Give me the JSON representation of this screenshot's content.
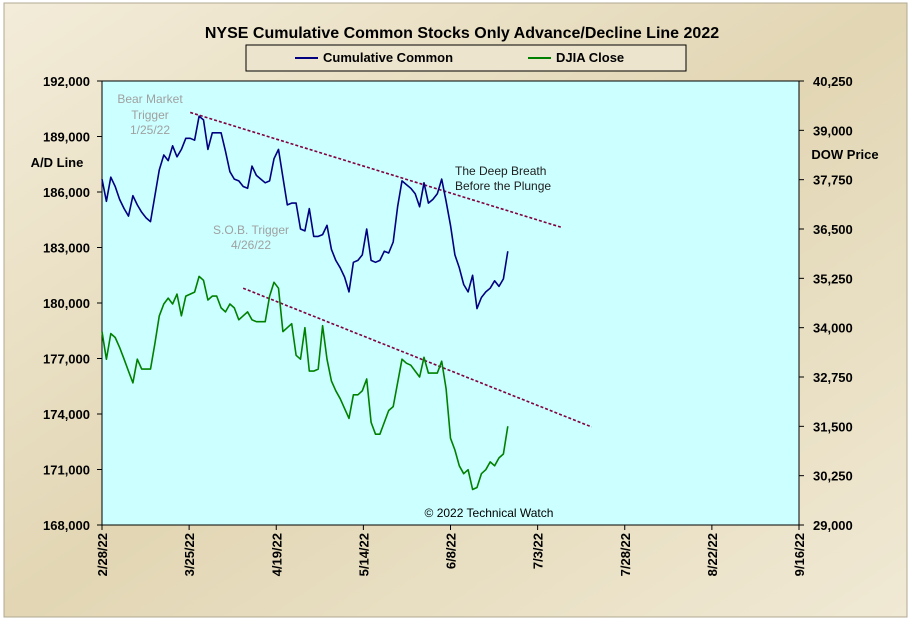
{
  "chart_data": {
    "type": "line",
    "title": "NYSE Cumulative  Common Stocks Only Advance/Decline  Line 2022",
    "ylabel_left": "A/D Line",
    "ylabel_right": "DOW  Price",
    "credit": "© 2022 Technical Watch",
    "x_ticks": [
      "2/28/22",
      "3/25/22",
      "4/19/22",
      "5/14/22",
      "6/8/22",
      "7/3/22",
      "7/28/22",
      "8/22/22",
      "9/16/22"
    ],
    "y_left_ticks": [
      "192,000",
      "189,000",
      "186,000",
      "183,000",
      "180,000",
      "177,000",
      "174,000",
      "171,000",
      "168,000"
    ],
    "y_right_ticks": [
      "40,250",
      "39,000",
      "37,750",
      "36,500",
      "35,250",
      "34,000",
      "32,750",
      "31,500",
      "30,250",
      "29,000"
    ],
    "y_left_range": [
      168000,
      192000
    ],
    "y_right_range": [
      29000,
      40250
    ],
    "colors": {
      "background_outer": "#e6dcc0",
      "plot_bg": "#ccffff",
      "ad_line": "#000080",
      "djia": "#008000",
      "trend": "#800040"
    },
    "series": [
      {
        "name": "Cumulative Common",
        "axis": "left",
        "points": [
          [
            0,
            186700
          ],
          [
            1,
            185500
          ],
          [
            2,
            186800
          ],
          [
            3,
            186300
          ],
          [
            4,
            185600
          ],
          [
            5,
            185100
          ],
          [
            6,
            184700
          ],
          [
            7,
            185800
          ],
          [
            8,
            185300
          ],
          [
            9,
            184900
          ],
          [
            10,
            184600
          ],
          [
            11,
            184400
          ],
          [
            12,
            185800
          ],
          [
            13,
            187200
          ],
          [
            14,
            188000
          ],
          [
            15,
            187700
          ],
          [
            16,
            188500
          ],
          [
            17,
            187900
          ],
          [
            18,
            188300
          ],
          [
            19,
            188900
          ],
          [
            20,
            188900
          ],
          [
            21,
            188800
          ],
          [
            22,
            190100
          ],
          [
            23,
            189900
          ],
          [
            24,
            188300
          ],
          [
            25,
            189200
          ],
          [
            26,
            189200
          ],
          [
            27,
            189200
          ],
          [
            28,
            188200
          ],
          [
            29,
            187100
          ],
          [
            30,
            186700
          ],
          [
            31,
            186600
          ],
          [
            32,
            186300
          ],
          [
            33,
            186200
          ],
          [
            34,
            187400
          ],
          [
            35,
            186900
          ],
          [
            36,
            186700
          ],
          [
            37,
            186500
          ],
          [
            38,
            186600
          ],
          [
            39,
            187800
          ],
          [
            40,
            188300
          ],
          [
            41,
            186800
          ],
          [
            42,
            185300
          ],
          [
            43,
            185400
          ],
          [
            44,
            185400
          ],
          [
            45,
            184000
          ],
          [
            46,
            183900
          ],
          [
            47,
            185100
          ],
          [
            48,
            183600
          ],
          [
            49,
            183600
          ],
          [
            50,
            183700
          ],
          [
            51,
            184200
          ],
          [
            52,
            182900
          ],
          [
            53,
            182300
          ],
          [
            54,
            181900
          ],
          [
            55,
            181400
          ],
          [
            56,
            180600
          ],
          [
            57,
            182200
          ],
          [
            58,
            182300
          ],
          [
            59,
            182600
          ],
          [
            60,
            184000
          ],
          [
            61,
            182300
          ],
          [
            62,
            182200
          ],
          [
            63,
            182300
          ],
          [
            64,
            182800
          ],
          [
            65,
            182700
          ],
          [
            66,
            183300
          ],
          [
            67,
            185200
          ],
          [
            68,
            186600
          ],
          [
            69,
            186400
          ],
          [
            70,
            186200
          ],
          [
            71,
            185900
          ],
          [
            72,
            185200
          ],
          [
            73,
            186500
          ],
          [
            74,
            185400
          ],
          [
            75,
            185600
          ],
          [
            76,
            185900
          ],
          [
            77,
            186700
          ],
          [
            78,
            185500
          ],
          [
            79,
            184200
          ],
          [
            80,
            182600
          ],
          [
            81,
            181900
          ],
          [
            82,
            181000
          ],
          [
            83,
            180600
          ],
          [
            84,
            181500
          ],
          [
            85,
            179700
          ],
          [
            86,
            180300
          ],
          [
            87,
            180600
          ],
          [
            88,
            180800
          ],
          [
            89,
            181200
          ],
          [
            90,
            180900
          ],
          [
            91,
            181300
          ],
          [
            92,
            182800
          ]
        ]
      },
      {
        "name": "DJIA Close",
        "axis": "right",
        "points": [
          [
            0,
            33900
          ],
          [
            1,
            33200
          ],
          [
            2,
            33850
          ],
          [
            3,
            33750
          ],
          [
            4,
            33500
          ],
          [
            5,
            33200
          ],
          [
            6,
            32900
          ],
          [
            7,
            32600
          ],
          [
            8,
            33200
          ],
          [
            9,
            32950
          ],
          [
            10,
            32950
          ],
          [
            11,
            32950
          ],
          [
            12,
            33600
          ],
          [
            13,
            34300
          ],
          [
            14,
            34600
          ],
          [
            15,
            34750
          ],
          [
            16,
            34600
          ],
          [
            17,
            34850
          ],
          [
            18,
            34300
          ],
          [
            19,
            34800
          ],
          [
            20,
            34850
          ],
          [
            21,
            34900
          ],
          [
            22,
            35300
          ],
          [
            23,
            35200
          ],
          [
            24,
            34700
          ],
          [
            25,
            34800
          ],
          [
            26,
            34800
          ],
          [
            27,
            34500
          ],
          [
            28,
            34400
          ],
          [
            29,
            34600
          ],
          [
            30,
            34500
          ],
          [
            31,
            34200
          ],
          [
            32,
            34300
          ],
          [
            33,
            34400
          ],
          [
            34,
            34200
          ],
          [
            35,
            34150
          ],
          [
            36,
            34150
          ],
          [
            37,
            34150
          ],
          [
            38,
            34800
          ],
          [
            39,
            35150
          ],
          [
            40,
            35000
          ],
          [
            41,
            33900
          ],
          [
            42,
            34000
          ],
          [
            43,
            34100
          ],
          [
            44,
            33300
          ],
          [
            45,
            33200
          ],
          [
            46,
            34000
          ],
          [
            47,
            32900
          ],
          [
            48,
            32900
          ],
          [
            49,
            32950
          ],
          [
            50,
            34050
          ],
          [
            51,
            33200
          ],
          [
            52,
            32650
          ],
          [
            53,
            32400
          ],
          [
            54,
            32200
          ],
          [
            55,
            31950
          ],
          [
            56,
            31700
          ],
          [
            57,
            32300
          ],
          [
            58,
            32300
          ],
          [
            59,
            32400
          ],
          [
            60,
            32700
          ],
          [
            61,
            31600
          ],
          [
            62,
            31300
          ],
          [
            63,
            31300
          ],
          [
            64,
            31600
          ],
          [
            65,
            31900
          ],
          [
            66,
            32000
          ],
          [
            67,
            32600
          ],
          [
            68,
            33200
          ],
          [
            69,
            33100
          ],
          [
            70,
            33050
          ],
          [
            71,
            32900
          ],
          [
            72,
            32750
          ],
          [
            73,
            33250
          ],
          [
            74,
            32850
          ],
          [
            75,
            32850
          ],
          [
            76,
            32850
          ],
          [
            77,
            33150
          ],
          [
            78,
            32450
          ],
          [
            79,
            31200
          ],
          [
            80,
            30900
          ],
          [
            81,
            30500
          ],
          [
            82,
            30300
          ],
          [
            83,
            30400
          ],
          [
            84,
            29900
          ],
          [
            85,
            29950
          ],
          [
            86,
            30300
          ],
          [
            87,
            30400
          ],
          [
            88,
            30600
          ],
          [
            89,
            30500
          ],
          [
            90,
            30700
          ],
          [
            91,
            30800
          ],
          [
            92,
            31500
          ]
        ]
      }
    ],
    "x_domain": [
      0,
      158
    ],
    "annotations": [
      {
        "lines": [
          "Bear Market",
          "Trigger",
          "1/25/22"
        ],
        "color": "#a0a0a0"
      },
      {
        "lines": [
          "S.O.B. Trigger",
          "4/26/22"
        ],
        "color": "#a0a0a0"
      },
      {
        "lines": [
          "The  Deep Breath",
          "Before the Plunge"
        ],
        "color": "#202020"
      }
    ],
    "trendlines": [
      {
        "axis": "left",
        "from": [
          20,
          190300
        ],
        "to": [
          104,
          184100
        ]
      },
      {
        "axis": "left",
        "from": [
          32,
          180800
        ],
        "to": [
          111,
          173300
        ]
      }
    ]
  }
}
